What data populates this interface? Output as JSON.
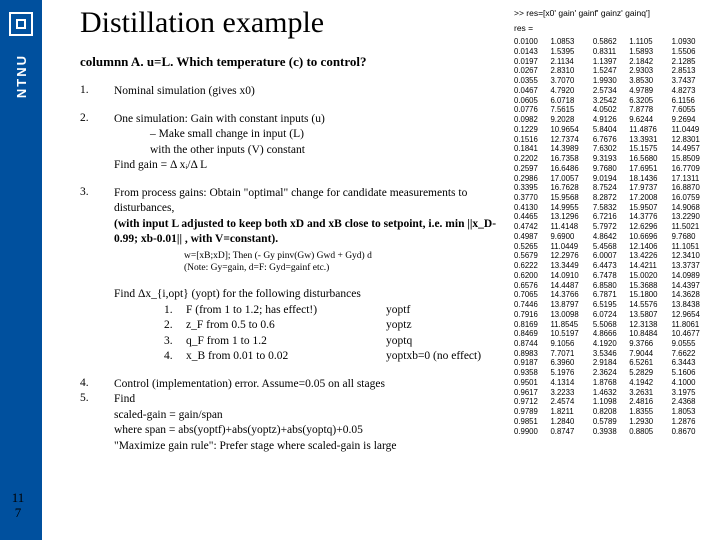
{
  "brand": {
    "name": "NTNU"
  },
  "page_number_top": "11",
  "page_number_bottom": "7",
  "title": "Distillation example",
  "subtitle": "columnn A. u=L. Which temperature (c) to control?",
  "items": [
    {
      "num": "1.",
      "body": "Nominal simulation (gives x0)"
    },
    {
      "num": "2.",
      "body": "One simulation: Gain with constant inputs (u)",
      "sub": [
        "–      Make small change in input (L)",
        "         with the other inputs (V) constant",
        "Find gain = Δ xᵢ/Δ L"
      ]
    },
    {
      "num": "3.",
      "body": "From process gains: Obtain \"optimal\" change for candidate measurements to disturbances,",
      "bold": "(with input L adjusted to keep both xD and xB close to setpoint, i.e. min ||x_D-0.99; xb-0.01|| , with V=constant).",
      "note1": "w=[xB;xD]; Then (- Gy pinv(Gw) Gwd + Gyd) d",
      "note2": "(Note: Gy=gain, d=F: Gyd=gainf etc.)"
    }
  ],
  "findblock": {
    "lead": "Find Δx_{i,opt} (yopt) for the following disturbances",
    "rows": [
      {
        "n": "1.",
        "d": "F  (from 1 to 1.2; has effect!)",
        "y": "yoptf"
      },
      {
        "n": "2.",
        "d": "z_F from 0.5 to 0.6",
        "y": "yoptz"
      },
      {
        "n": "3.",
        "d": "q_F from 1 to 1.2",
        "y": "yoptq"
      },
      {
        "n": "4.",
        "d": "x_B from 0.01 to 0.02",
        "y": "yoptxb=0 (no effect)"
      }
    ]
  },
  "items2": [
    {
      "num": "4.",
      "body": "Control (implementation) error. Assume=0.05 on all stages"
    },
    {
      "num": "5.",
      "body": "Find",
      "lines": [
        "            scaled-gain = gain/span",
        "where   span = abs(yoptf)+abs(yoptz)+abs(yoptq)+0.05",
        "\"Maximize gain rule\": Prefer stage where scaled-gain is large"
      ]
    }
  ],
  "datapanel": {
    "header": ">> res=[x0' gain' gainf' gainz' gainq']",
    "eq": "res =",
    "rows": [
      [
        "0.0100",
        "1.0853",
        "0.5862",
        "1.1105",
        "1.0930"
      ],
      [
        "0.0143",
        "1.5395",
        "0.8311",
        "1.5893",
        "1.5506"
      ],
      [
        "0.0197",
        "2.1134",
        "1.1397",
        "2.1842",
        "2.1285"
      ],
      [
        "0.0267",
        "2.8310",
        "1.5247",
        "2.9303",
        "2.8513"
      ],
      [
        "0.0355",
        "3.7070",
        "1.9930",
        "3.8530",
        "3.7437"
      ],
      [
        "0.0467",
        "4.7920",
        "2.5734",
        "4.9789",
        "4.8273"
      ],
      [
        "0.0605",
        "6.0718",
        "3.2542",
        "6.3205",
        "6.1156"
      ],
      [
        "0.0776",
        "7.5615",
        "4.0502",
        "7.8778",
        "7.6055"
      ],
      [
        "0.0982",
        "9.2028",
        "4.9126",
        "9.6244",
        "9.2694"
      ],
      [
        "0.1229",
        "10.9654",
        "5.8404",
        "11.4876",
        "11.0449"
      ],
      [
        "0.1516",
        "12.7374",
        "6.7676",
        "13.3931",
        "12.8301"
      ],
      [
        "0.1841",
        "14.3989",
        "7.6302",
        "15.1575",
        "14.4957"
      ],
      [
        "0.2202",
        "16.7358",
        "9.3193",
        "16.5680",
        "15.8509"
      ],
      [
        "0.2597",
        "16.6486",
        "9.7680",
        "17.6951",
        "16.7709"
      ],
      [
        "0.2986",
        "17.0057",
        "9.0194",
        "18.1436",
        "17.1311"
      ],
      [
        "0.3395",
        "16.7628",
        "8.7524",
        "17.9737",
        "16.8870"
      ],
      [
        "0.3770",
        "15.9568",
        "8.2872",
        "17.2008",
        "16.0759"
      ],
      [
        "0.4130",
        "14.9955",
        "7.5832",
        "15.9507",
        "14.9068"
      ],
      [
        "0.4465",
        "13.1296",
        "6.7216",
        "14.3776",
        "13.2290"
      ],
      [
        "0.4742",
        "11.4148",
        "5.7972",
        "12.6296",
        "11.5021"
      ],
      [
        "0.4987",
        "9.6900",
        "4.8642",
        "10.6696",
        "9.7680"
      ],
      [
        "0.5265",
        "11.0449",
        "5.4568",
        "12.1406",
        "11.1051"
      ],
      [
        "0.5679",
        "12.2976",
        "6.0007",
        "13.4226",
        "12.3410"
      ],
      [
        "0.6222",
        "13.3449",
        "6.4473",
        "14.4211",
        "13.3737"
      ],
      [
        "0.6200",
        "14.0910",
        "6.7478",
        "15.0020",
        "14.0989"
      ],
      [
        "0.6576",
        "14.4487",
        "6.8580",
        "15.3688",
        "14.4397"
      ],
      [
        "0.7065",
        "14.3766",
        "6.7871",
        "15.1800",
        "14.3628"
      ],
      [
        "0.7446",
        "13.8797",
        "6.5195",
        "14.5576",
        "13.8438"
      ],
      [
        "0.7916",
        "13.0098",
        "6.0724",
        "13.5807",
        "12.9654"
      ],
      [
        "0.8169",
        "11.8545",
        "5.5068",
        "12.3138",
        "11.8061"
      ],
      [
        "0.8469",
        "10.5197",
        "4.8666",
        "10.8484",
        "10.4677"
      ],
      [
        "0.8744",
        "9.1056",
        "4.1920",
        "9.3766",
        "9.0555"
      ],
      [
        "0.8983",
        "7.7071",
        "3.5346",
        "7.9044",
        "7.6622"
      ],
      [
        "0.9187",
        "6.3960",
        "2.9184",
        "6.5261",
        "6.3443"
      ],
      [
        "0.9358",
        "5.1976",
        "2.3624",
        "5.2829",
        "5.1606"
      ],
      [
        "0.9501",
        "4.1314",
        "1.8768",
        "4.1942",
        "4.1000"
      ],
      [
        "0.9617",
        "3.2233",
        "1.4632",
        "3.2631",
        "3.1975"
      ],
      [
        "0.9712",
        "2.4574",
        "1.1098",
        "2.4816",
        "2.4368"
      ],
      [
        "0.9789",
        "1.8211",
        "0.8208",
        "1.8355",
        "1.8053"
      ],
      [
        "0.9851",
        "1.2840",
        "0.5789",
        "1.2930",
        "1.2876"
      ],
      [
        "0.9900",
        "0.8747",
        "0.3938",
        "0.8805",
        "0.8670"
      ]
    ]
  },
  "colors": {
    "brand_blue": "#00509e"
  }
}
